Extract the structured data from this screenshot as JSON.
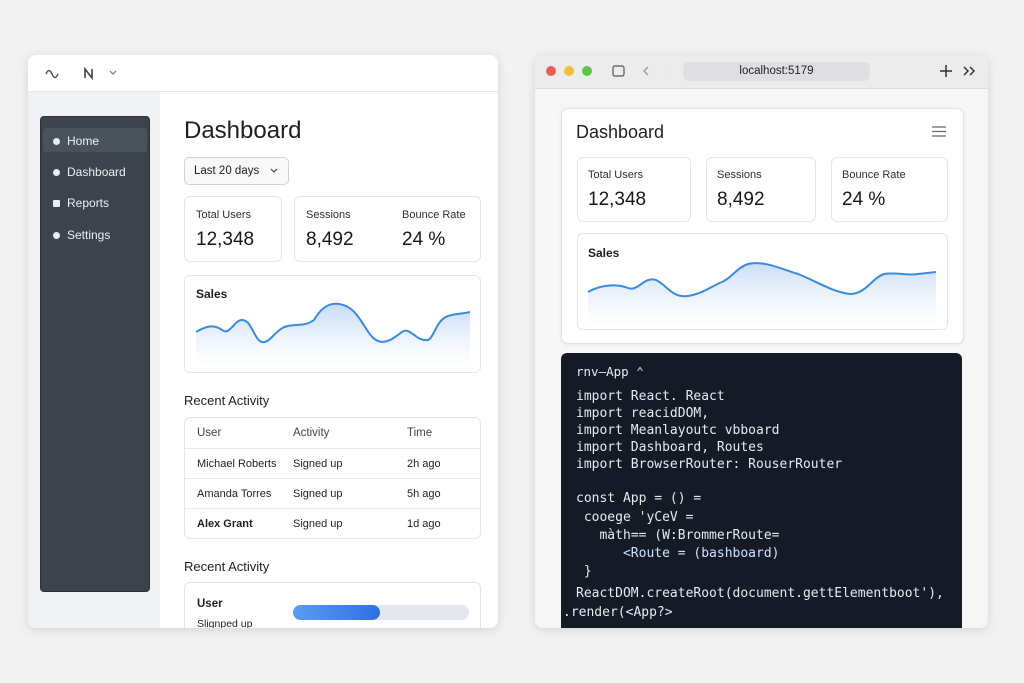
{
  "left_window": {
    "sidebar": [
      "Home",
      "Dashboard",
      "Reports",
      "Settings"
    ],
    "title": "Dashboard",
    "date_filter": "Last 20 days",
    "stats": [
      {
        "label": "Total Users",
        "value": "12,348"
      },
      {
        "label": "Sessions",
        "value": "8,492"
      },
      {
        "label": "Bounce Rate",
        "value": "24 %"
      }
    ],
    "sales_title": "Sales",
    "recent_activity_title": "Recent Activity",
    "table": {
      "headers": [
        "User",
        "Activity",
        "Time"
      ],
      "rows": [
        [
          "Michael Roberts",
          "Signed up",
          "2h ago"
        ],
        [
          "Amanda Torres",
          "Signed up",
          "5h ago"
        ],
        [
          "Alex Grant",
          "Signed up",
          "1d ago"
        ]
      ]
    },
    "recent_activity_2": {
      "title": "Recent Activity",
      "user": "User",
      "status": "Slignped up"
    }
  },
  "right_window": {
    "url": "localhost:5179",
    "title": "Dashboard",
    "stats": [
      {
        "label": "Total Users",
        "value": "12,348"
      },
      {
        "label": "Sessions",
        "value": "8,492"
      },
      {
        "label": "Bounce Rate",
        "value": "24 %"
      }
    ],
    "sales_title": "Sales",
    "code": {
      "tab": "rnv–App ⌃",
      "lines": [
        "import React. React",
        "import reacidDOM,",
        "import Meanlayoutc vbboard",
        "import Dashboard, Routes",
        "import BrowserRouter: RouserRouter",
        "const App = () =",
        " cooege 'yCeV =",
        "   màth== (W:BrommerRoute=",
        "      <Route = (bashboard)",
        " }",
        "ReactDOM.createRoot(document.gettElementboot'),",
        ".render(<App?>"
      ]
    }
  }
}
